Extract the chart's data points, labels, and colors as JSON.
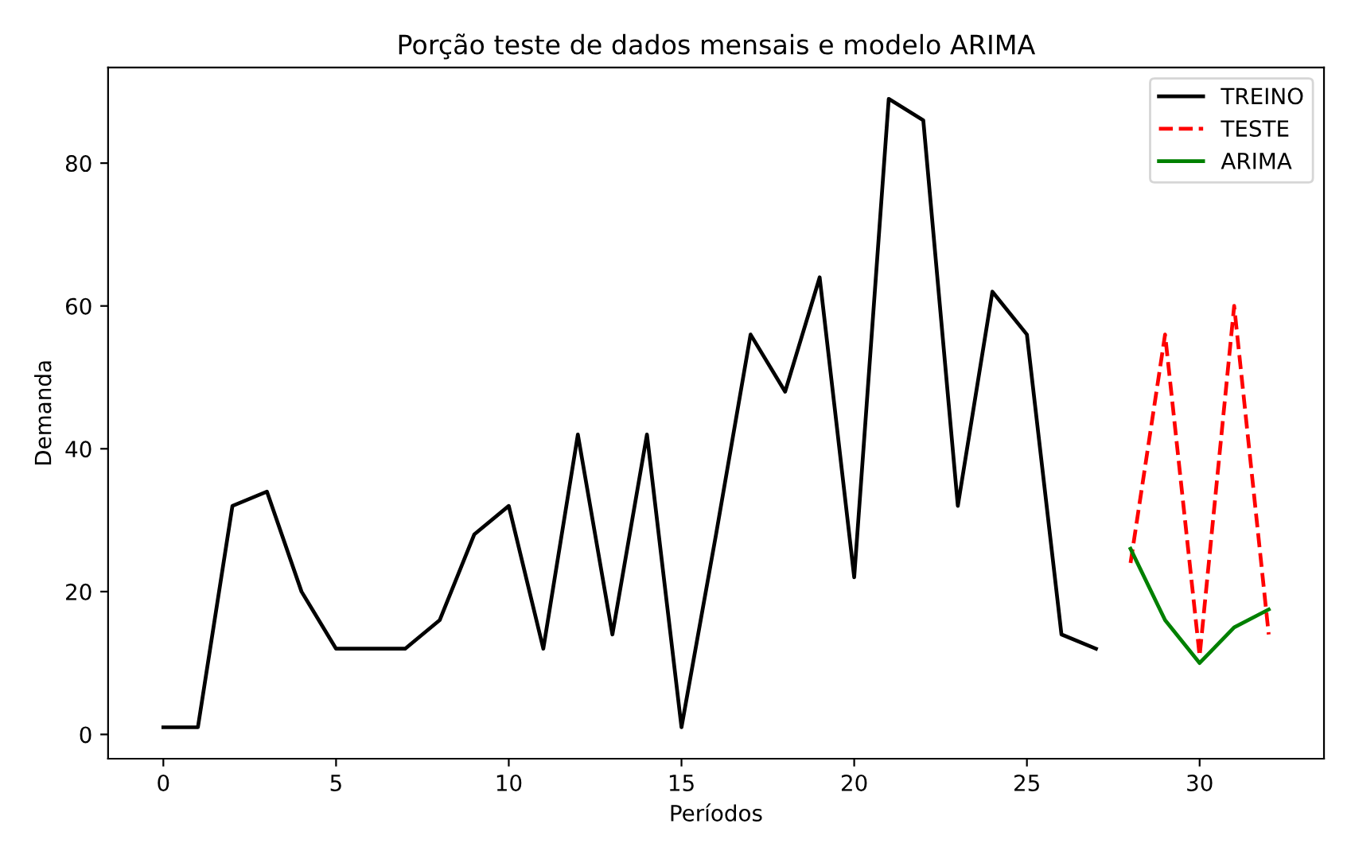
{
  "chart_data": {
    "type": "line",
    "title": "Porção teste de dados mensais e modelo ARIMA",
    "xlabel": "Períodos",
    "ylabel": "Demanda",
    "series": [
      {
        "name": "TREINO",
        "color": "#000000",
        "line_style": "solid",
        "x": [
          0,
          1,
          2,
          3,
          4,
          5,
          6,
          7,
          8,
          9,
          10,
          11,
          12,
          13,
          14,
          15,
          16,
          17,
          18,
          19,
          20,
          21,
          22,
          23,
          24,
          25,
          26,
          27
        ],
        "values": [
          1,
          1,
          32,
          34,
          20,
          12,
          12,
          12,
          16,
          28,
          32,
          12,
          42,
          14,
          42,
          1,
          28,
          56,
          48,
          64,
          22,
          89,
          86,
          32,
          62,
          56,
          14,
          12
        ]
      },
      {
        "name": "TESTE",
        "color": "#ff0000",
        "line_style": "dashed",
        "x": [
          28,
          29,
          30,
          31,
          32
        ],
        "values": [
          24,
          56,
          11,
          60,
          14
        ]
      },
      {
        "name": "ARIMA",
        "color": "#008000",
        "line_style": "solid",
        "x": [
          28,
          29,
          30,
          31,
          32
        ],
        "values": [
          26,
          16,
          10,
          15,
          17.5
        ]
      }
    ],
    "xlim": [
      -1.6,
      33.6
    ],
    "ylim": [
      -3.4,
      93.4
    ],
    "xticks": [
      0,
      5,
      10,
      15,
      20,
      25,
      30
    ],
    "yticks": [
      0,
      20,
      40,
      60,
      80
    ],
    "grid": false,
    "legend": "top right",
    "marker": "none"
  }
}
